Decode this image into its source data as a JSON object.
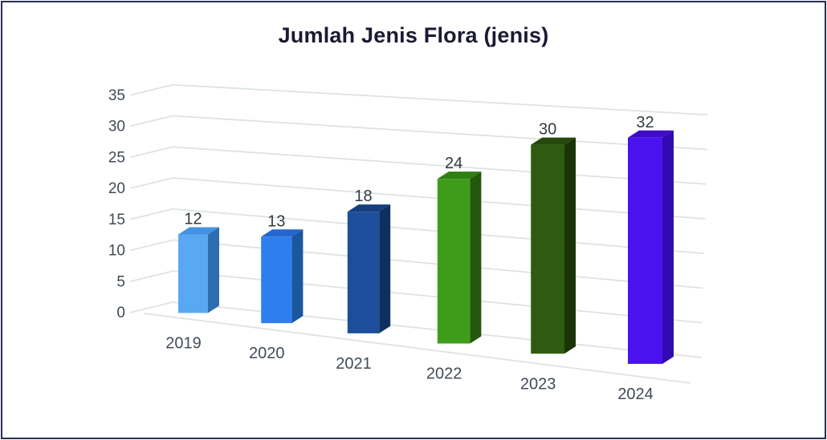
{
  "frame": {
    "border_color": "#2B2D55",
    "background": "#FFFFFF"
  },
  "chart_data": {
    "type": "bar",
    "style": "3d-column",
    "title": "Jumlah Jenis Flora (jenis)",
    "categories": [
      "2019",
      "2020",
      "2021",
      "2022",
      "2023",
      "2024"
    ],
    "values": [
      12,
      13,
      18,
      24,
      30,
      32
    ],
    "xlabel": "",
    "ylabel": "",
    "ylim": [
      0,
      35
    ],
    "yticks": [
      0,
      5,
      10,
      15,
      20,
      25,
      30,
      35
    ],
    "grid": true,
    "legend_position": "none",
    "data_labels": true,
    "colors": {
      "gridline": "#DCE4E2",
      "title_text": "#1A1A33",
      "axis_tick_text": "#404A55",
      "category_text": "#414B57",
      "value_label_text": "#343A40",
      "bars": [
        {
          "category": "2019",
          "front": "#58A9F2",
          "top": "#4392E2",
          "side": "#2D6EAE"
        },
        {
          "category": "2020",
          "front": "#2E7EF0",
          "top": "#2266CE",
          "side": "#1A57A0"
        },
        {
          "category": "2021",
          "front": "#1C4E9B",
          "top": "#153F7E",
          "side": "#0F2F61"
        },
        {
          "category": "2022",
          "front": "#3F9C1B",
          "top": "#2F7F12",
          "side": "#22590C"
        },
        {
          "category": "2023",
          "front": "#2F5B10",
          "top": "#25480C",
          "side": "#1A3408"
        },
        {
          "category": "2024",
          "front": "#4B12F0",
          "top": "#3C0CC8",
          "side": "#3309B2"
        }
      ]
    }
  }
}
